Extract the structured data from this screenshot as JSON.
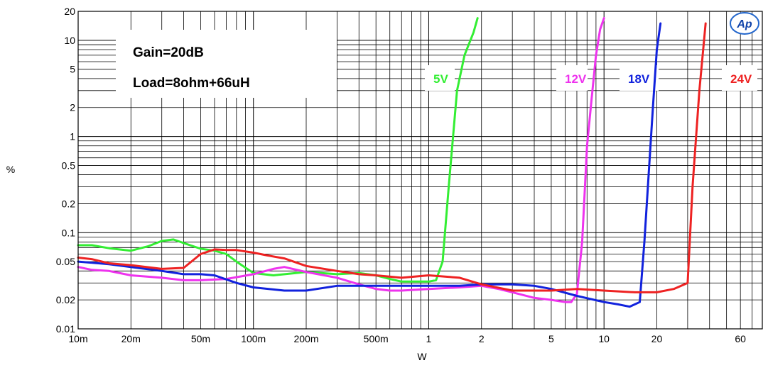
{
  "chart_data": {
    "type": "line",
    "xscale": "log",
    "yscale": "log",
    "xlim": [
      0.01,
      80
    ],
    "ylim": [
      0.01,
      20
    ],
    "xlabel": "W",
    "ylabel": "%",
    "grid": true,
    "x_ticks": [
      {
        "value": 0.01,
        "label": "10m"
      },
      {
        "value": 0.02,
        "label": "20m"
      },
      {
        "value": 0.05,
        "label": "50m"
      },
      {
        "value": 0.1,
        "label": "100m"
      },
      {
        "value": 0.2,
        "label": "200m"
      },
      {
        "value": 0.5,
        "label": "500m"
      },
      {
        "value": 1,
        "label": "1"
      },
      {
        "value": 2,
        "label": "2"
      },
      {
        "value": 5,
        "label": "5"
      },
      {
        "value": 10,
        "label": "10"
      },
      {
        "value": 20,
        "label": "20"
      },
      {
        "value": 60,
        "label": "60"
      }
    ],
    "y_ticks": [
      {
        "value": 20,
        "label": "20"
      },
      {
        "value": 10,
        "label": "10"
      },
      {
        "value": 5,
        "label": "5"
      },
      {
        "value": 2,
        "label": "2"
      },
      {
        "value": 1,
        "label": "1"
      },
      {
        "value": 0.5,
        "label": "0.5"
      },
      {
        "value": 0.2,
        "label": "0.2"
      },
      {
        "value": 0.1,
        "label": "0.1"
      },
      {
        "value": 0.05,
        "label": "0.05"
      },
      {
        "value": 0.02,
        "label": "0.02"
      },
      {
        "value": 0.01,
        "label": "0.01"
      }
    ],
    "annotations": [
      "Gain=20dB",
      "Load=8ohm+66uH"
    ],
    "series": [
      {
        "name": "5V",
        "color": "#33ee33",
        "x": [
          0.01,
          0.012,
          0.015,
          0.02,
          0.025,
          0.03,
          0.035,
          0.04,
          0.05,
          0.06,
          0.07,
          0.08,
          0.1,
          0.13,
          0.2,
          0.3,
          0.4,
          0.5,
          0.6,
          0.7,
          0.8,
          1.0,
          1.1,
          1.2,
          1.3,
          1.45,
          1.6,
          1.8,
          1.9
        ],
        "y": [
          0.074,
          0.074,
          0.069,
          0.065,
          0.072,
          0.082,
          0.085,
          0.078,
          0.068,
          0.065,
          0.06,
          0.05,
          0.038,
          0.036,
          0.039,
          0.037,
          0.038,
          0.036,
          0.033,
          0.031,
          0.031,
          0.031,
          0.032,
          0.05,
          0.3,
          3.0,
          7.0,
          12.0,
          17.0
        ]
      },
      {
        "name": "12V",
        "color": "#ee33ee",
        "x": [
          0.01,
          0.012,
          0.015,
          0.02,
          0.03,
          0.04,
          0.05,
          0.07,
          0.1,
          0.13,
          0.15,
          0.2,
          0.3,
          0.4,
          0.5,
          0.6,
          0.7,
          1.0,
          1.5,
          2.0,
          2.5,
          3.0,
          4.0,
          5.0,
          6.0,
          6.5,
          7.0,
          7.5,
          8.0,
          8.5,
          9.0,
          9.5,
          10.0
        ],
        "y": [
          0.044,
          0.041,
          0.04,
          0.036,
          0.034,
          0.032,
          0.032,
          0.033,
          0.037,
          0.042,
          0.044,
          0.039,
          0.034,
          0.029,
          0.026,
          0.025,
          0.025,
          0.026,
          0.027,
          0.028,
          0.026,
          0.024,
          0.021,
          0.02,
          0.019,
          0.019,
          0.023,
          0.08,
          0.8,
          2.5,
          7.0,
          13.0,
          17.0
        ]
      },
      {
        "name": "18V",
        "color": "#1122dd",
        "x": [
          0.01,
          0.015,
          0.02,
          0.03,
          0.04,
          0.05,
          0.06,
          0.08,
          0.1,
          0.15,
          0.2,
          0.3,
          0.5,
          1.0,
          1.5,
          2.0,
          3.0,
          4.0,
          5.0,
          7.0,
          10.0,
          12.0,
          14.0,
          15.0,
          16.0,
          17.0,
          19.0,
          20.0,
          21.0
        ],
        "y": [
          0.05,
          0.047,
          0.044,
          0.04,
          0.037,
          0.037,
          0.036,
          0.03,
          0.027,
          0.025,
          0.025,
          0.028,
          0.028,
          0.028,
          0.028,
          0.029,
          0.029,
          0.028,
          0.026,
          0.022,
          0.019,
          0.018,
          0.017,
          0.018,
          0.019,
          0.08,
          2.0,
          8.0,
          15.0
        ]
      },
      {
        "name": "24V",
        "color": "#ee2222",
        "x": [
          0.01,
          0.012,
          0.015,
          0.02,
          0.03,
          0.04,
          0.05,
          0.06,
          0.07,
          0.08,
          0.1,
          0.12,
          0.15,
          0.2,
          0.3,
          0.4,
          0.5,
          0.7,
          1.0,
          1.5,
          2.0,
          3.0,
          5.0,
          7.0,
          10.0,
          15.0,
          20.0,
          25.0,
          30.0,
          32.0,
          35.0,
          38.0
        ],
        "y": [
          0.055,
          0.053,
          0.048,
          0.046,
          0.042,
          0.043,
          0.06,
          0.067,
          0.066,
          0.066,
          0.062,
          0.058,
          0.054,
          0.045,
          0.04,
          0.037,
          0.036,
          0.034,
          0.036,
          0.034,
          0.029,
          0.025,
          0.025,
          0.026,
          0.025,
          0.024,
          0.024,
          0.026,
          0.03,
          0.3,
          3.0,
          15.0
        ]
      }
    ]
  },
  "logo": {
    "text": "Ap"
  }
}
